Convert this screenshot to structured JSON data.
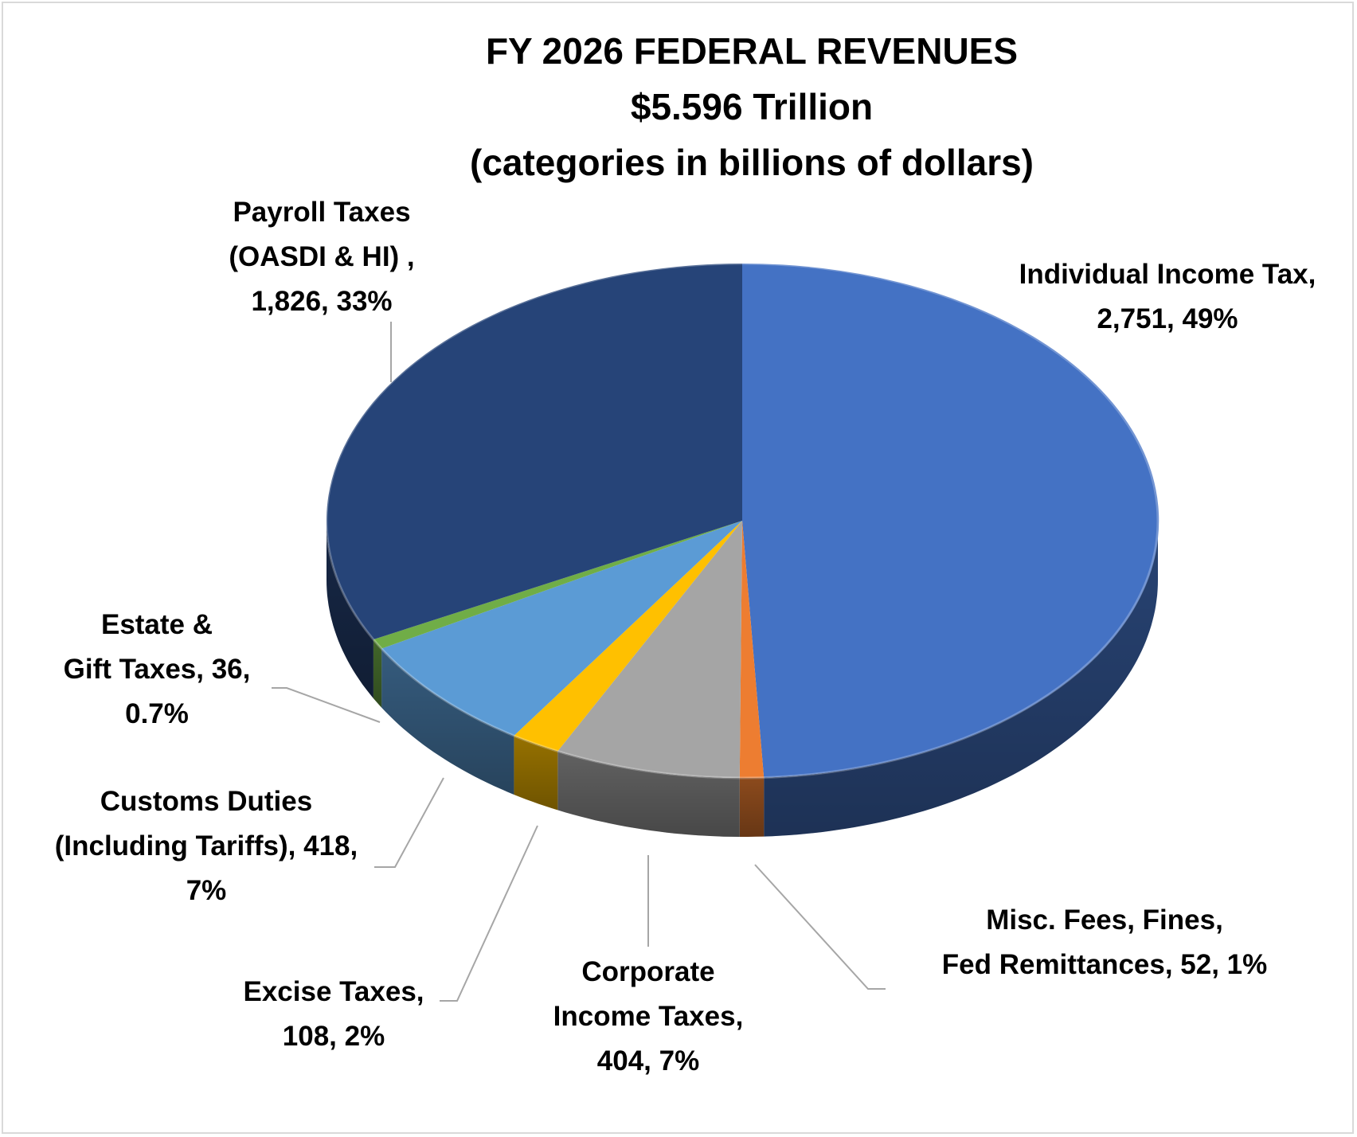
{
  "chart_data": {
    "type": "pie",
    "title": "FY 2026 FEDERAL REVENUES",
    "subtitle": "$5.596 Trillion",
    "subtitle2": "(categories in billions of dollars)",
    "categories": [
      "Individual Income Tax",
      "Misc. Fees, Fines, Fed Remittances",
      "Corporate Income Taxes",
      "Excise Taxes",
      "Customs Duties (Including Tariffs)",
      "Estate & Gift Taxes",
      "Payroll Taxes (OASDI & HI)"
    ],
    "values": [
      2751,
      52,
      404,
      108,
      418,
      36,
      1826
    ],
    "percent_labels": [
      "49%",
      "1%",
      "7%",
      "2%",
      "7%",
      "0.7%",
      "33%"
    ],
    "colors": [
      "#4472C4",
      "#ED7D31",
      "#A5A5A5",
      "#FFC000",
      "#5B9BD5",
      "#70AD47",
      "#264478"
    ],
    "labels": [
      [
        "Individual Income Tax,",
        "2,751, 49%"
      ],
      [
        "Misc. Fees, Fines,",
        "Fed Remittances, 52, 1%"
      ],
      [
        "Corporate",
        "Income Taxes,",
        "404, 7%"
      ],
      [
        "Excise Taxes,",
        "108, 2%"
      ],
      [
        "Customs Duties",
        "(Including Tariffs), 418,",
        "7%"
      ],
      [
        "Estate &",
        "Gift Taxes, 36,",
        "0.7%"
      ],
      [
        "Payroll Taxes",
        "(OASDI & HI) ,",
        "1,826, 33%"
      ]
    ]
  }
}
